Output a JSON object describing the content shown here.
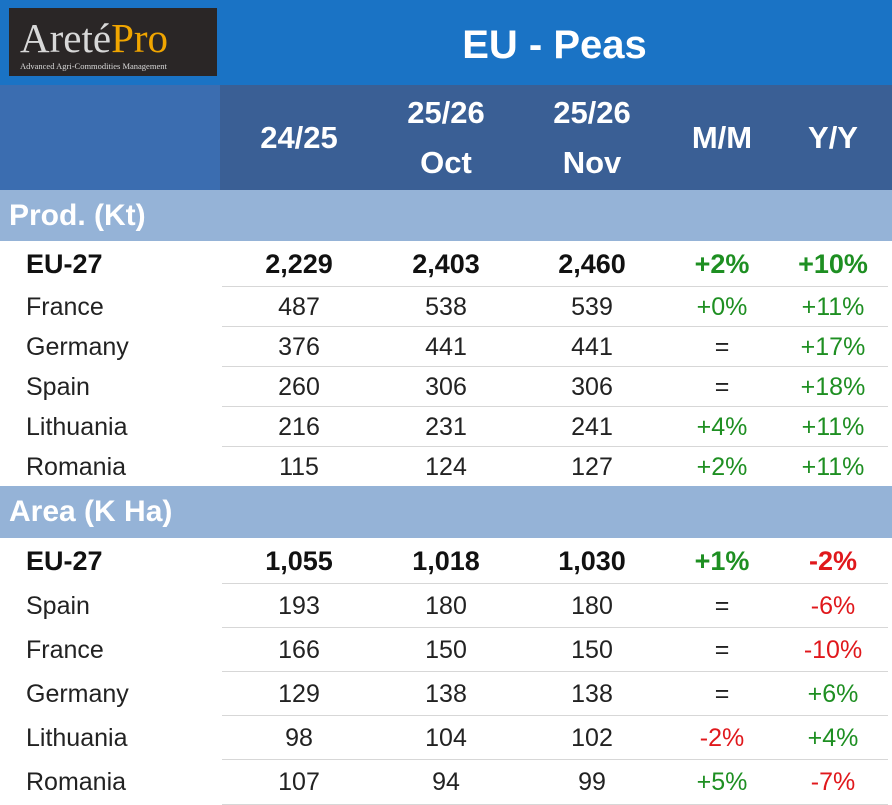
{
  "logo": {
    "main": "Areté",
    "pro": "Pro",
    "tagline": "Advanced Agri-Commodities Management"
  },
  "title": "EU - Peas",
  "columns": [
    {
      "line1": "24/25",
      "line2": ""
    },
    {
      "line1": "25/26",
      "line2": "Oct"
    },
    {
      "line1": "25/26",
      "line2": "Nov"
    },
    {
      "line1": "M/M",
      "line2": ""
    },
    {
      "line1": "Y/Y",
      "line2": ""
    }
  ],
  "sections": [
    {
      "title": "Prod. (Kt)",
      "rows": [
        {
          "name": "EU-27",
          "v1": "2,229",
          "v2": "2,403",
          "v3": "2,460",
          "mm": "+2%",
          "yy": "+10%",
          "total": true
        },
        {
          "name": "France",
          "v1": "487",
          "v2": "538",
          "v3": "539",
          "mm": "+0%",
          "yy": "+11%"
        },
        {
          "name": "Germany",
          "v1": "376",
          "v2": "441",
          "v3": "441",
          "mm": "=",
          "yy": "+17%"
        },
        {
          "name": "Spain",
          "v1": "260",
          "v2": "306",
          "v3": "306",
          "mm": "=",
          "yy": "+18%"
        },
        {
          "name": "Lithuania",
          "v1": "216",
          "v2": "231",
          "v3": "241",
          "mm": "+4%",
          "yy": "+11%"
        },
        {
          "name": "Romania",
          "v1": "115",
          "v2": "124",
          "v3": "127",
          "mm": "+2%",
          "yy": "+11%"
        }
      ]
    },
    {
      "title": "Area (K Ha)",
      "rows": [
        {
          "name": "EU-27",
          "v1": "1,055",
          "v2": "1,018",
          "v3": "1,030",
          "mm": "+1%",
          "yy": "-2%",
          "total": true
        },
        {
          "name": "Spain",
          "v1": "193",
          "v2": "180",
          "v3": "180",
          "mm": "=",
          "yy": "-6%"
        },
        {
          "name": "France",
          "v1": "166",
          "v2": "150",
          "v3": "150",
          "mm": "=",
          "yy": "-10%"
        },
        {
          "name": "Germany",
          "v1": "129",
          "v2": "138",
          "v3": "138",
          "mm": "=",
          "yy": "+6%"
        },
        {
          "name": "Lithuania",
          "v1": "98",
          "v2": "104",
          "v3": "102",
          "mm": "-2%",
          "yy": "+4%"
        },
        {
          "name": "Romania",
          "v1": "107",
          "v2": "94",
          "v3": "99",
          "mm": "+5%",
          "yy": "-7%"
        }
      ]
    }
  ],
  "colors": {
    "title_bar": "#1a73c5",
    "header_bar": "#3a5f95",
    "section_bar": "#95b3d7",
    "positive": "#1e8f22",
    "negative": "#e0181c"
  }
}
